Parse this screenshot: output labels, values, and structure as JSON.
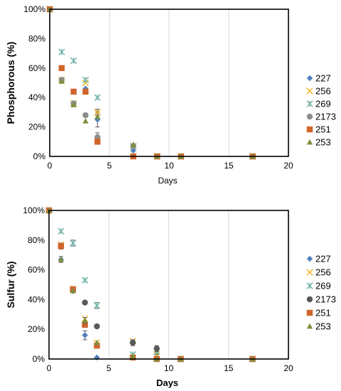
{
  "chart_data": [
    {
      "type": "scatter",
      "xlabel": "Days",
      "ylabel": "Phosphorous (%)",
      "xlim": [
        0,
        20
      ],
      "ylim": [
        0,
        100
      ],
      "x_ticks": [
        "0",
        "5",
        "10",
        "15",
        "20"
      ],
      "y_ticks": [
        "0%",
        "20%",
        "40%",
        "60%",
        "80%",
        "100%"
      ],
      "grid": "vertical",
      "legend": "right",
      "series": [
        {
          "name": "227",
          "marker": "diamond",
          "color": "#4f81bd",
          "x": [
            0,
            1,
            2,
            3,
            4,
            7,
            9,
            11,
            17
          ],
          "y": [
            100,
            52,
            36,
            46,
            25,
            4,
            0,
            0,
            0
          ],
          "err": [
            0,
            0,
            0,
            0,
            5,
            0,
            0,
            0,
            0
          ]
        },
        {
          "name": "256",
          "marker": "x",
          "color": "#f3b21c",
          "x": [
            0,
            1,
            2,
            3,
            4,
            7,
            9,
            11,
            17
          ],
          "y": [
            100,
            52,
            36,
            50,
            30,
            7,
            0,
            0,
            0
          ],
          "err": [
            0,
            0,
            0,
            0,
            2,
            0,
            0,
            0,
            0
          ]
        },
        {
          "name": "269",
          "marker": "star",
          "color": "#6fb3a8",
          "x": [
            0,
            1,
            2,
            3,
            4,
            7,
            9,
            11,
            17
          ],
          "y": [
            100,
            71,
            65,
            52,
            40,
            7,
            0,
            0,
            0
          ],
          "err": [
            0,
            0,
            0,
            0,
            0,
            0,
            0,
            0,
            0
          ]
        },
        {
          "name": "2173",
          "marker": "circle",
          "color": "#8c8c8c",
          "x": [
            0,
            1,
            2,
            3,
            4,
            7,
            9,
            11,
            17
          ],
          "y": [
            100,
            52,
            36,
            28,
            13,
            7,
            0,
            0,
            0
          ],
          "err": [
            0,
            0,
            0,
            0,
            3,
            0,
            0,
            0,
            0
          ]
        },
        {
          "name": "251",
          "marker": "square",
          "color": "#d0652a",
          "x": [
            0,
            1,
            2,
            3,
            4,
            7,
            9,
            11,
            17
          ],
          "y": [
            100,
            60,
            44,
            44,
            10,
            0,
            0,
            0,
            0
          ],
          "err": [
            0,
            0,
            0,
            0,
            0,
            0,
            0,
            0,
            0
          ]
        },
        {
          "name": "253",
          "marker": "triangle",
          "color": "#7f8f3f",
          "x": [
            0,
            1,
            2,
            3,
            4,
            7,
            9,
            11,
            17
          ],
          "y": [
            100,
            51,
            35,
            24,
            27,
            8,
            0,
            0,
            0
          ],
          "err": [
            0,
            0,
            0,
            0,
            0,
            0,
            0,
            0,
            0
          ]
        }
      ]
    },
    {
      "type": "scatter",
      "xlabel": "Days",
      "ylabel": "Sulfur (%)",
      "xlim": [
        0,
        20
      ],
      "ylim": [
        0,
        100
      ],
      "x_ticks": [
        "0",
        "5",
        "10",
        "15",
        "20"
      ],
      "y_ticks": [
        "0%",
        "20%",
        "40%",
        "60%",
        "80%",
        "100%"
      ],
      "grid": "vertical",
      "legend": "right",
      "series": [
        {
          "name": "227",
          "marker": "diamond",
          "color": "#4f81bd",
          "x": [
            0,
            1,
            2,
            3,
            4,
            7,
            9,
            11,
            17
          ],
          "y": [
            100,
            67,
            46,
            16,
            1,
            1,
            0,
            0,
            0
          ],
          "err": [
            0,
            0,
            0,
            3,
            0,
            0,
            0,
            0,
            0
          ]
        },
        {
          "name": "256",
          "marker": "x",
          "color": "#f3b21c",
          "x": [
            0,
            1,
            2,
            3,
            4,
            7,
            9,
            11,
            17
          ],
          "y": [
            100,
            77,
            47,
            27,
            11,
            12,
            3,
            0,
            0
          ],
          "err": [
            0,
            0,
            0,
            0,
            0,
            0,
            0,
            0,
            0
          ]
        },
        {
          "name": "269",
          "marker": "star",
          "color": "#6fb3a8",
          "x": [
            0,
            1,
            2,
            3,
            4,
            7,
            9,
            11,
            17
          ],
          "y": [
            100,
            86,
            78,
            53,
            36,
            3,
            5,
            0,
            0
          ],
          "err": [
            0,
            0,
            2,
            0,
            2,
            0,
            2,
            0,
            0
          ]
        },
        {
          "name": "2173",
          "marker": "circle",
          "color": "#595959",
          "x": [
            0,
            1,
            2,
            3,
            4,
            7,
            9,
            11,
            17
          ],
          "y": [
            100,
            76,
            46,
            38,
            22,
            11,
            7,
            0,
            0
          ],
          "err": [
            0,
            0,
            0,
            0,
            0,
            2,
            2,
            0,
            0
          ]
        },
        {
          "name": "251",
          "marker": "square",
          "color": "#d0652a",
          "x": [
            0,
            1,
            2,
            3,
            4,
            7,
            9,
            11,
            17
          ],
          "y": [
            100,
            76,
            47,
            23,
            9,
            1,
            0,
            0,
            0
          ],
          "err": [
            0,
            2,
            0,
            0,
            0,
            0,
            0,
            0,
            0
          ]
        },
        {
          "name": "253",
          "marker": "triangle",
          "color": "#7f8f3f",
          "x": [
            0,
            1,
            2,
            3,
            4,
            7,
            9,
            11,
            17
          ],
          "y": [
            100,
            67,
            46,
            26,
            11,
            2,
            0,
            0,
            0
          ],
          "err": [
            0,
            2,
            0,
            2,
            0,
            0,
            0,
            0,
            0
          ]
        }
      ]
    }
  ]
}
